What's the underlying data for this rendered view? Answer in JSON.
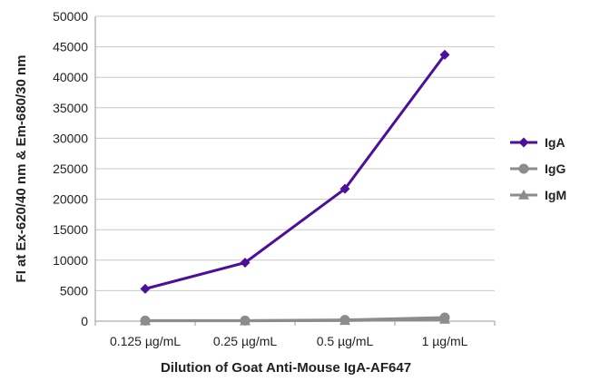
{
  "chart_data": {
    "type": "line",
    "categories": [
      "0.125 µg/mL",
      "0.25 µg/mL",
      "0.5 µg/mL",
      "1 µg/mL"
    ],
    "series": [
      {
        "name": "IgA",
        "values": [
          5300,
          9600,
          21700,
          43700
        ],
        "color": "#4b0f9b",
        "marker": "diamond"
      },
      {
        "name": "IgG",
        "values": [
          100,
          100,
          200,
          600
        ],
        "color": "#8c8c8c",
        "marker": "circle"
      },
      {
        "name": "IgM",
        "values": [
          50,
          50,
          100,
          300
        ],
        "color": "#8c8c8c",
        "marker": "triangle"
      }
    ],
    "yticks": [
      "0",
      "5000",
      "10000",
      "15000",
      "20000",
      "25000",
      "30000",
      "35000",
      "40000",
      "45000",
      "50000"
    ],
    "ylim": [
      0,
      50000
    ],
    "xlabel": "Dilution of Goat Anti-Mouse IgA-AF647",
    "ylabel": "FI at Ex-620/40 nm & Em-680/30 nm",
    "grid": "horizontal",
    "legend_position": "right"
  }
}
